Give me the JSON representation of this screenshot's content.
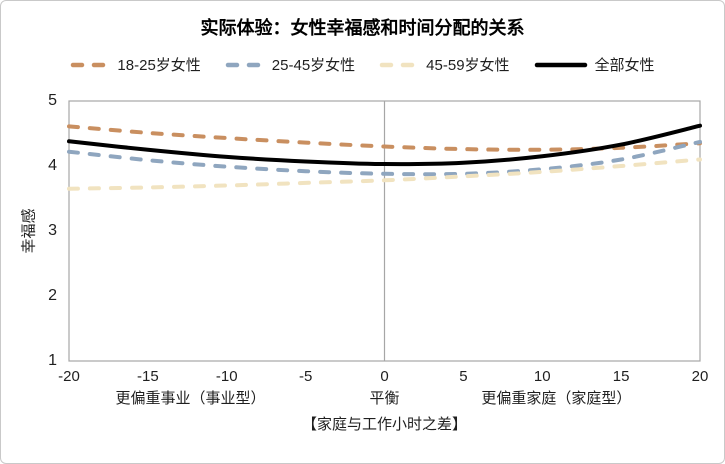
{
  "frame": {
    "background": "#ffffff",
    "border_color": "#c9c9c9"
  },
  "chart_data": {
    "type": "line",
    "title": "实际体验：女性幸福感和时间分配的关系",
    "xlabel": "【家庭与工作小时之差】",
    "ylabel": "幸福感",
    "xlim": [
      -20,
      20
    ],
    "ylim": [
      1,
      5
    ],
    "grid": "off",
    "legend_position": "top",
    "axis_color": "#a6a6a6",
    "text_color": "#1f1f1f",
    "reference_line_x": 0,
    "x": [
      -20,
      -15,
      -10,
      -5,
      0,
      5,
      10,
      15,
      20
    ],
    "xtick_labels": [
      "-20",
      "-15",
      "-10",
      "-5",
      "0",
      "5",
      "10",
      "15",
      "20"
    ],
    "ytick_values": [
      5,
      4,
      3,
      2,
      1
    ],
    "zone_labels": [
      {
        "text": "更偏重事业（事业型）",
        "x": -12.3
      },
      {
        "text": "平衡",
        "x": 0
      },
      {
        "text": "更偏重家庭（家庭型）",
        "x": 10.9
      }
    ],
    "series": [
      {
        "name": "18-25岁女性",
        "color": "#c98f60",
        "style": "dashed",
        "values": [
          4.61,
          4.51,
          4.43,
          4.36,
          4.3,
          4.26,
          4.25,
          4.28,
          4.35
        ]
      },
      {
        "name": "25-45岁女性",
        "color": "#8fa6bf",
        "style": "dashed",
        "values": [
          4.22,
          4.09,
          3.99,
          3.92,
          3.88,
          3.88,
          3.95,
          4.1,
          4.37
        ]
      },
      {
        "name": "45-59岁女性",
        "color": "#f1e3c0",
        "style": "dashed",
        "values": [
          3.65,
          3.67,
          3.7,
          3.74,
          3.78,
          3.84,
          3.91,
          4.0,
          4.1
        ]
      },
      {
        "name": "全部女性",
        "color": "#000000",
        "style": "solid",
        "values": [
          4.38,
          4.25,
          4.14,
          4.07,
          4.03,
          4.05,
          4.15,
          4.33,
          4.62
        ]
      }
    ]
  }
}
